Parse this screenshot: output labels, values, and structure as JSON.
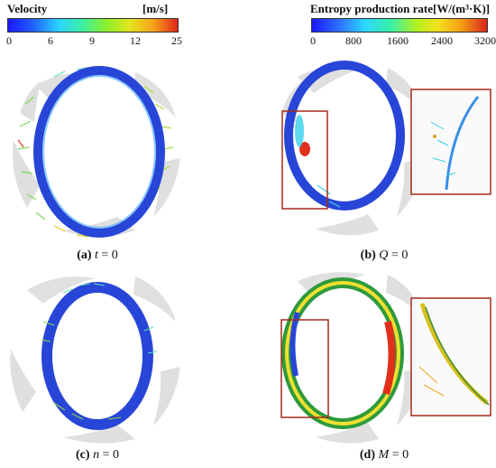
{
  "legend_velocity": {
    "title": "Velocity",
    "unit": "[m/s]",
    "ticks": [
      "0",
      "6",
      "9",
      "12",
      "25"
    ]
  },
  "legend_entropy": {
    "title": "Entropy production rate[W/(m³·K)]",
    "ticks": [
      "0",
      "800",
      "1600",
      "2400",
      "3200"
    ]
  },
  "captions": {
    "a": {
      "label": "(a)",
      "var": "t",
      "rest": "= 0"
    },
    "b": {
      "label": "(b)",
      "var": "Q",
      "rest": "= 0"
    },
    "c": {
      "label": "(c)",
      "var": "n",
      "rest": "= 0"
    },
    "d": {
      "label": "(d)",
      "var": "M",
      "rest": "= 0"
    }
  },
  "colors": {
    "blade": "#d6d6d6",
    "ring_blue": "#2746d8",
    "highlight_box": "#a52a1a",
    "vector_green": "#7ed957",
    "vector_yellow": "#f0e030",
    "vector_red": "#e0301a"
  }
}
